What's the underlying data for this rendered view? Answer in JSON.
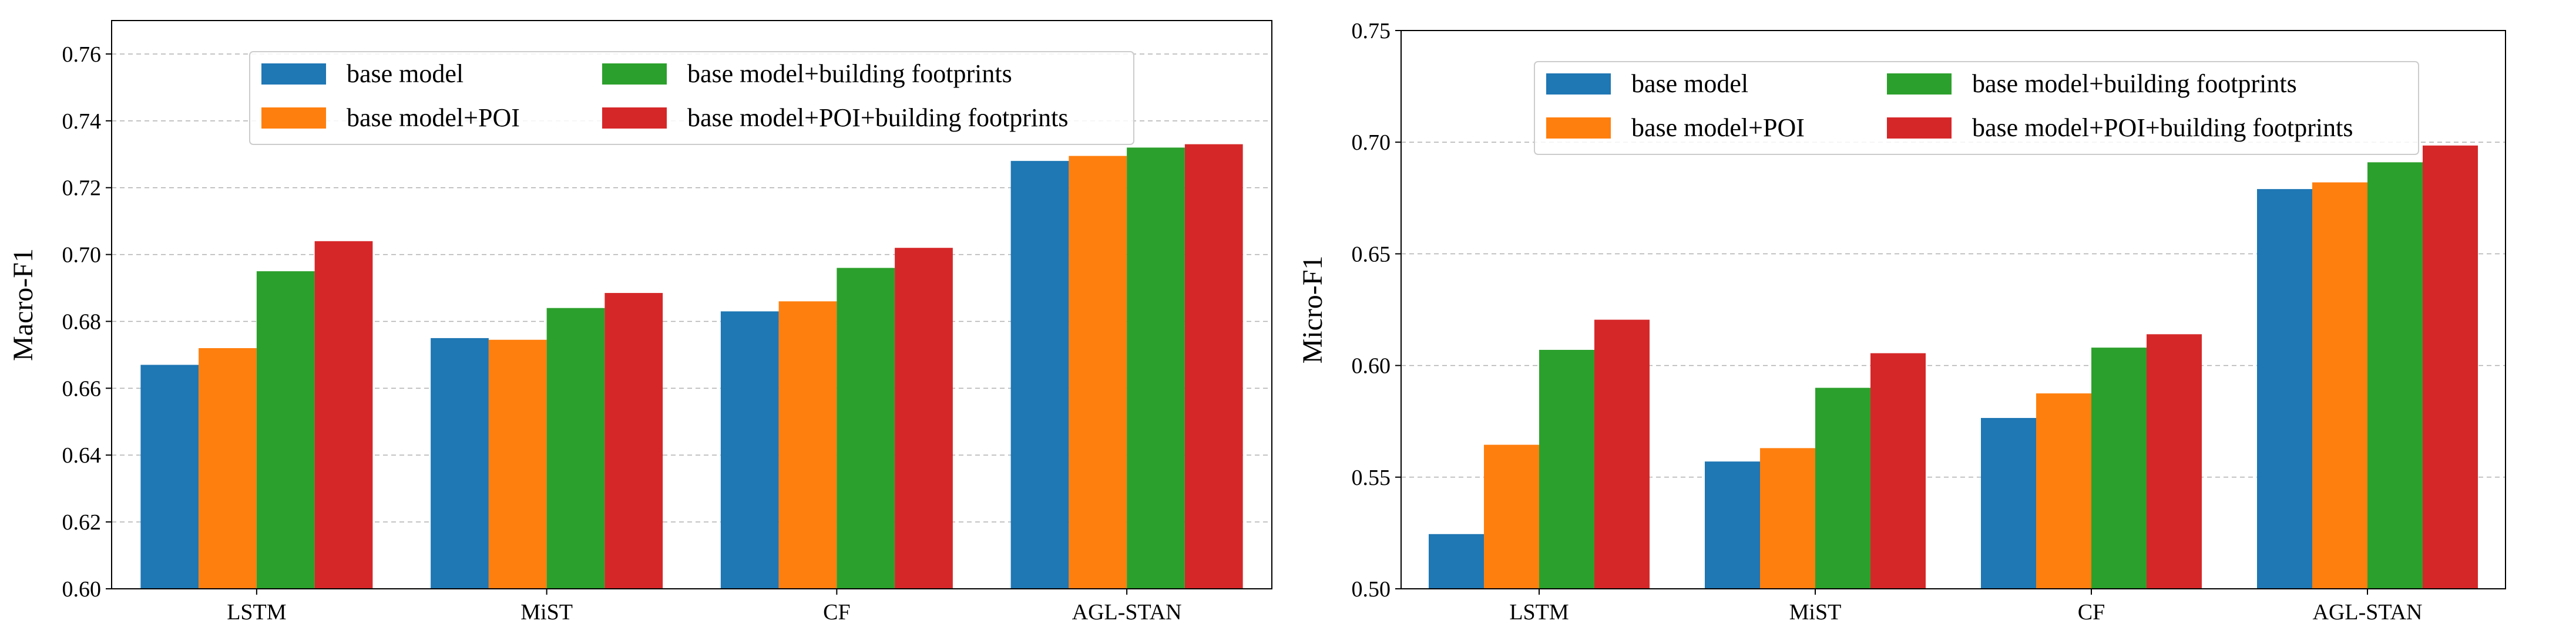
{
  "chart_data": [
    {
      "type": "bar",
      "title": "",
      "xlabel": "",
      "ylabel": "Macro-F1",
      "ylim": [
        0.6,
        0.77
      ],
      "yticks": [
        "0.60",
        "0.62",
        "0.64",
        "0.66",
        "0.68",
        "0.70",
        "0.72",
        "0.74",
        "0.76"
      ],
      "grid": true,
      "legend_position": "top-center",
      "categories": [
        "LSTM",
        "MiST",
        "CF",
        "AGL-STAN"
      ],
      "series": [
        {
          "name": "base model",
          "color": "#1f77b4",
          "values": [
            0.667,
            0.675,
            0.683,
            0.728
          ]
        },
        {
          "name": "base model+POI",
          "color": "#ff7f0e",
          "values": [
            0.672,
            0.6745,
            0.686,
            0.7295
          ]
        },
        {
          "name": "base model+building footprints",
          "color": "#2ca02c",
          "values": [
            0.695,
            0.684,
            0.696,
            0.732
          ]
        },
        {
          "name": "base model+POI+building footprints",
          "color": "#d62728",
          "values": [
            0.704,
            0.6885,
            0.702,
            0.733
          ]
        }
      ]
    },
    {
      "type": "bar",
      "title": "",
      "xlabel": "",
      "ylabel": "Micro-F1",
      "ylim": [
        0.5,
        0.75
      ],
      "yticks": [
        "0.50",
        "0.55",
        "0.60",
        "0.65",
        "0.70",
        "0.75"
      ],
      "grid": true,
      "legend_position": "top-center",
      "categories": [
        "LSTM",
        "MiST",
        "CF",
        "AGL-STAN"
      ],
      "series": [
        {
          "name": "base model",
          "color": "#1f77b4",
          "values": [
            0.5245,
            0.557,
            0.5765,
            0.679
          ]
        },
        {
          "name": "base model+POI",
          "color": "#ff7f0e",
          "values": [
            0.5645,
            0.563,
            0.5875,
            0.682
          ]
        },
        {
          "name": "base model+building footprints",
          "color": "#2ca02c",
          "values": [
            0.607,
            0.59,
            0.608,
            0.691
          ]
        },
        {
          "name": "base model+POI+building footprints",
          "color": "#d62728",
          "values": [
            0.6205,
            0.6055,
            0.614,
            0.6985
          ]
        }
      ]
    }
  ]
}
